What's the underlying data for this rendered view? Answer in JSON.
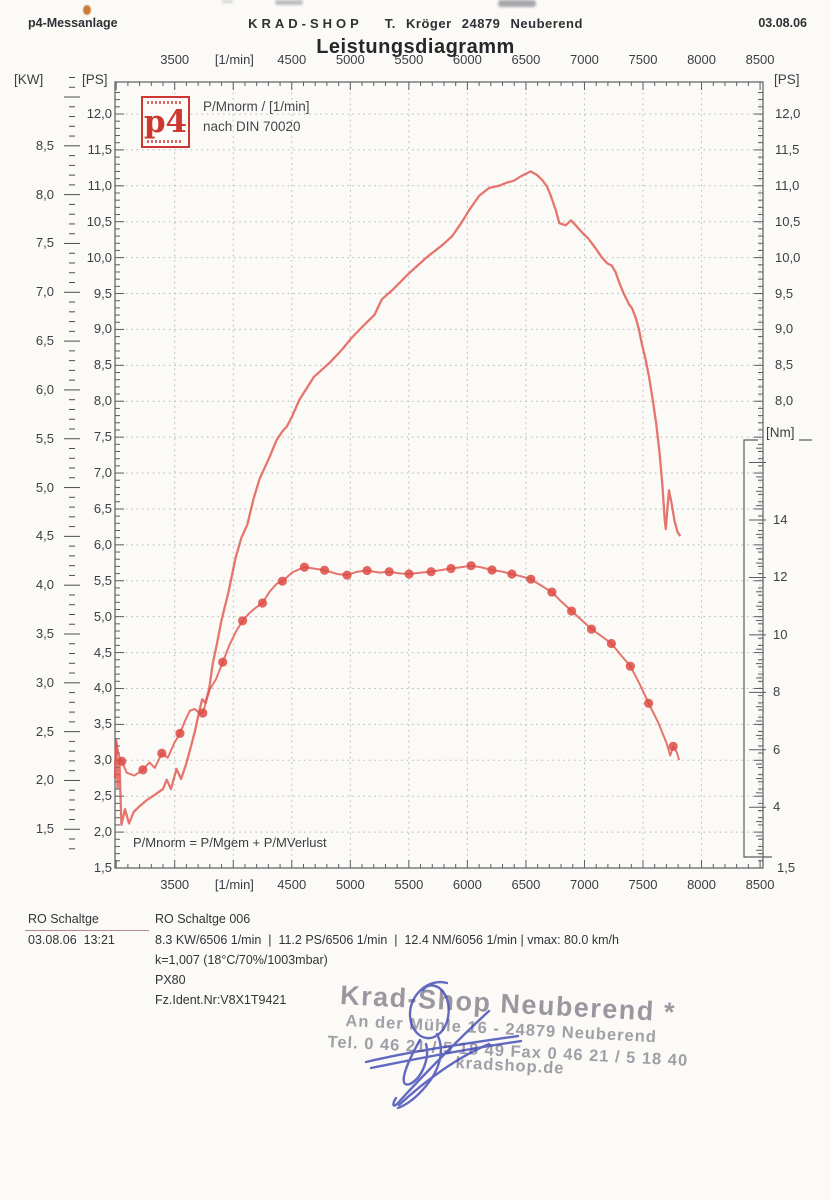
{
  "header": {
    "app": "p4-Messanlage",
    "shop": "KRAD-SHOP",
    "owner": "T. Kröger  24879  Neuberend",
    "date": "03.08.06"
  },
  "chart_data": {
    "type": "line",
    "title": "Leistungsdiagramm",
    "legend": {
      "logo": "p4",
      "line1": "P/Mnorm / [1/min]",
      "line2": "nach DIN 70020"
    },
    "annotation": "P/Mnorm = P/Mgem + P/MVerlust",
    "grid": "dotted",
    "x_axis": {
      "unit": "[1/min]",
      "min": 2990,
      "max": 8525,
      "labels": [
        {
          "t": "3500",
          "rpm": 3500
        },
        {
          "t": "[1/min]",
          "rpm": 4010
        },
        {
          "t": "4500",
          "rpm": 4500
        },
        {
          "t": "5000",
          "rpm": 5000
        },
        {
          "t": "5500",
          "rpm": 5500
        },
        {
          "t": "6000",
          "rpm": 6000
        },
        {
          "t": "6500",
          "rpm": 6500
        },
        {
          "t": "7000",
          "rpm": 7000
        },
        {
          "t": "7500",
          "rpm": 7500
        },
        {
          "t": "8000",
          "rpm": 8000
        },
        {
          "t": "8500",
          "rpm": 8500
        }
      ]
    },
    "y_axis_ps_left": {
      "unit": "[PS]",
      "labels": [
        "12,0",
        "11,5",
        "11,0",
        "10,5",
        "10,0",
        "9,5",
        "9,0",
        "8,5",
        "8,0",
        "7,5",
        "7,0",
        "6,5",
        "6,0",
        "5,5",
        "5,0",
        "4,5",
        "4,0",
        "3,5",
        "3,0",
        "2,5",
        "2,0",
        "1,5"
      ],
      "min": 1.5,
      "max": 12.45
    },
    "y_axis_kw_left": {
      "unit": "[KW]",
      "labels": [
        "8,5",
        "8,0",
        "7,5",
        "7,0",
        "6,5",
        "6,0",
        "5,5",
        "5,0",
        "4,5",
        "4,0",
        "3,5",
        "3,0",
        "2,5",
        "2,0",
        "1,5"
      ]
    },
    "y_axis_ps_right": {
      "unit": "[PS]",
      "labels": [
        "12,0",
        "11,5",
        "11,0",
        "10,5",
        "10,0",
        "9,5",
        "9,0",
        "8,5",
        "8,0"
      ],
      "bottom_label": "1,5"
    },
    "y_axis_nm_right": {
      "unit": "[Nm]",
      "labels": [
        "14",
        "12",
        "10",
        "8",
        "6",
        "4"
      ]
    },
    "series": [
      {
        "name": "power",
        "unit": "PS",
        "color": "#e0544c",
        "points": [
          [
            2990,
            2.75
          ],
          [
            3000,
            3.28
          ],
          [
            3012,
            2.62
          ],
          [
            3028,
            3.02
          ],
          [
            3045,
            2.1
          ],
          [
            3075,
            2.32
          ],
          [
            3110,
            2.12
          ],
          [
            3150,
            2.28
          ],
          [
            3200,
            2.36
          ],
          [
            3265,
            2.45
          ],
          [
            3330,
            2.52
          ],
          [
            3400,
            2.6
          ],
          [
            3432,
            2.73
          ],
          [
            3468,
            2.6
          ],
          [
            3515,
            2.88
          ],
          [
            3555,
            2.74
          ],
          [
            3600,
            2.96
          ],
          [
            3640,
            3.2
          ],
          [
            3675,
            3.42
          ],
          [
            3705,
            3.65
          ],
          [
            3735,
            3.85
          ],
          [
            3762,
            3.8
          ],
          [
            3795,
            4.0
          ],
          [
            3825,
            4.35
          ],
          [
            3860,
            4.62
          ],
          [
            3900,
            4.95
          ],
          [
            3960,
            5.35
          ],
          [
            4020,
            5.82
          ],
          [
            4070,
            6.1
          ],
          [
            4120,
            6.28
          ],
          [
            4175,
            6.65
          ],
          [
            4225,
            6.92
          ],
          [
            4310,
            7.22
          ],
          [
            4370,
            7.46
          ],
          [
            4420,
            7.58
          ],
          [
            4458,
            7.65
          ],
          [
            4500,
            7.78
          ],
          [
            4565,
            8.02
          ],
          [
            4690,
            8.34
          ],
          [
            4820,
            8.53
          ],
          [
            4930,
            8.72
          ],
          [
            5010,
            8.88
          ],
          [
            5135,
            9.09
          ],
          [
            5205,
            9.2
          ],
          [
            5270,
            9.42
          ],
          [
            5360,
            9.55
          ],
          [
            5500,
            9.78
          ],
          [
            5650,
            10.0
          ],
          [
            5790,
            10.18
          ],
          [
            5870,
            10.3
          ],
          [
            5955,
            10.5
          ],
          [
            6015,
            10.66
          ],
          [
            6100,
            10.86
          ],
          [
            6185,
            10.97
          ],
          [
            6270,
            11.0
          ],
          [
            6330,
            11.04
          ],
          [
            6395,
            11.07
          ],
          [
            6465,
            11.14
          ],
          [
            6540,
            11.2
          ],
          [
            6595,
            11.15
          ],
          [
            6640,
            11.08
          ],
          [
            6680,
            10.99
          ],
          [
            6715,
            10.85
          ],
          [
            6755,
            10.66
          ],
          [
            6785,
            10.48
          ],
          [
            6840,
            10.45
          ],
          [
            6885,
            10.52
          ],
          [
            6925,
            10.45
          ],
          [
            6980,
            10.35
          ],
          [
            7035,
            10.26
          ],
          [
            7095,
            10.13
          ],
          [
            7150,
            10.0
          ],
          [
            7195,
            9.92
          ],
          [
            7232,
            9.89
          ],
          [
            7265,
            9.8
          ],
          [
            7295,
            9.66
          ],
          [
            7335,
            9.5
          ],
          [
            7380,
            9.35
          ],
          [
            7408,
            9.29
          ],
          [
            7440,
            9.15
          ],
          [
            7465,
            9.0
          ],
          [
            7490,
            8.8
          ],
          [
            7520,
            8.6
          ],
          [
            7550,
            8.35
          ],
          [
            7580,
            8.05
          ],
          [
            7612,
            7.7
          ],
          [
            7640,
            7.3
          ],
          [
            7665,
            6.85
          ],
          [
            7685,
            6.35
          ],
          [
            7695,
            6.22
          ],
          [
            7706,
            6.45
          ],
          [
            7722,
            6.76
          ],
          [
            7742,
            6.6
          ],
          [
            7770,
            6.33
          ],
          [
            7795,
            6.18
          ],
          [
            7818,
            6.12
          ]
        ]
      },
      {
        "name": "torque",
        "unit": "Nm",
        "color": "#e0544c",
        "markers": true,
        "points": [
          [
            2990,
            5.5
          ],
          [
            3002,
            6.28
          ],
          [
            3020,
            5.85
          ],
          [
            3040,
            5.58
          ],
          [
            3048,
            5.6
          ],
          [
            3090,
            5.2
          ],
          [
            3155,
            5.1
          ],
          [
            3228,
            5.3
          ],
          [
            3285,
            5.56
          ],
          [
            3330,
            5.37
          ],
          [
            3390,
            5.88
          ],
          [
            3440,
            5.72
          ],
          [
            3498,
            6.25
          ],
          [
            3545,
            6.57
          ],
          [
            3588,
            7.0
          ],
          [
            3630,
            7.36
          ],
          [
            3672,
            7.42
          ],
          [
            3712,
            7.27
          ],
          [
            3740,
            7.28
          ],
          [
            3800,
            8.1
          ],
          [
            3852,
            8.45
          ],
          [
            3910,
            9.05
          ],
          [
            3968,
            9.65
          ],
          [
            4028,
            10.15
          ],
          [
            4080,
            10.49
          ],
          [
            4140,
            10.77
          ],
          [
            4200,
            10.97
          ],
          [
            4250,
            11.11
          ],
          [
            4310,
            11.5
          ],
          [
            4370,
            11.78
          ],
          [
            4420,
            11.87
          ],
          [
            4505,
            12.18
          ],
          [
            4608,
            12.36
          ],
          [
            4700,
            12.3
          ],
          [
            4780,
            12.25
          ],
          [
            4890,
            12.12
          ],
          [
            4972,
            12.08
          ],
          [
            5060,
            12.2
          ],
          [
            5143,
            12.24
          ],
          [
            5250,
            12.17
          ],
          [
            5332,
            12.2
          ],
          [
            5420,
            12.14
          ],
          [
            5502,
            12.12
          ],
          [
            5600,
            12.17
          ],
          [
            5690,
            12.2
          ],
          [
            5780,
            12.26
          ],
          [
            5860,
            12.31
          ],
          [
            5950,
            12.36
          ],
          [
            6032,
            12.41
          ],
          [
            6120,
            12.35
          ],
          [
            6210,
            12.26
          ],
          [
            6300,
            12.2
          ],
          [
            6380,
            12.12
          ],
          [
            6460,
            12.04
          ],
          [
            6542,
            11.94
          ],
          [
            6630,
            11.72
          ],
          [
            6722,
            11.49
          ],
          [
            6805,
            11.15
          ],
          [
            6890,
            10.83
          ],
          [
            6980,
            10.5
          ],
          [
            7060,
            10.2
          ],
          [
            7150,
            9.94
          ],
          [
            7230,
            9.7
          ],
          [
            7310,
            9.3
          ],
          [
            7392,
            8.91
          ],
          [
            7470,
            8.3
          ],
          [
            7548,
            7.62
          ],
          [
            7630,
            6.95
          ],
          [
            7700,
            6.25
          ],
          [
            7732,
            5.8
          ],
          [
            7758,
            6.12
          ],
          [
            7788,
            5.92
          ],
          [
            7808,
            5.64
          ]
        ],
        "marker_rpms": [
          3048,
          3228,
          3390,
          3545,
          3740,
          3910,
          4080,
          4250,
          4420,
          4608,
          4780,
          4972,
          5143,
          5332,
          5502,
          5690,
          5860,
          6032,
          6210,
          6380,
          6542,
          6722,
          6890,
          7060,
          7230,
          7392,
          7548,
          7758
        ]
      }
    ]
  },
  "footer": {
    "col1_row1": "RO Schaltge",
    "col1_row2": "03.08.06  13:21",
    "col2_row1": "RO Schaltge 006",
    "col2_row2": "8.3 KW/6506 1/min  |  11.2 PS/6506 1/min  |  12.4 NM/6056 1/min | vmax: 80.0 km/h",
    "col2_row3": "k=1,007 (18°C/70%/1003mbar)",
    "col2_row4": "PX80",
    "col2_row5": "Fz.Ident.Nr:V8X1T9421"
  },
  "stamp": {
    "line1": "Krad-Shop Neuberend *",
    "line2": "An der Mühle 16 - 24879 Neuberend",
    "line3": "Tel. 0 46 21 / 5 18 49   Fax 0 46 21 / 5 18 40",
    "line4": "kradshop.de"
  },
  "colors": {
    "curve": "#e0544c",
    "marker": "#dd4b44",
    "grid": "#b7b7c1",
    "frame": "#5c5c64",
    "logo_red": "#cc372f",
    "stamp_gray": "#8d8a95",
    "signature_blue": "#3d45b5",
    "paper": "#fbfaf6"
  }
}
